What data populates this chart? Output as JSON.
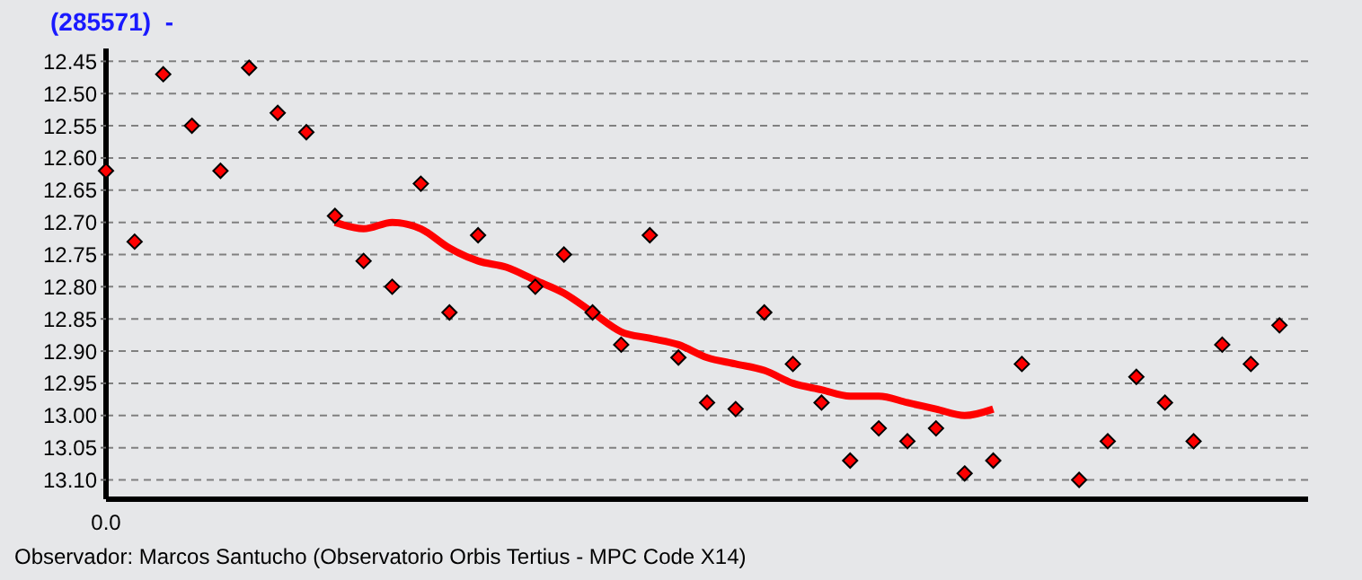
{
  "chart_data": {
    "type": "scatter",
    "title": "(285571)  -",
    "categories": [
      null,
      null,
      null,
      null,
      null,
      null,
      null,
      null,
      null,
      null,
      null,
      null,
      null,
      null,
      null,
      null,
      null,
      null,
      null,
      null,
      null,
      null,
      null,
      null,
      null,
      null,
      null,
      null,
      null,
      null,
      null,
      null,
      null,
      null,
      null,
      null,
      null,
      null,
      null,
      null,
      null,
      null,
      null
    ],
    "series": [
      {
        "color": "#ff0000",
        "marker": "diamond",
        "values": [
          12.62,
          12.73,
          12.47,
          12.55,
          12.62,
          12.46,
          12.53,
          12.56,
          12.69,
          12.76,
          12.8,
          12.64,
          12.84,
          12.72,
          null,
          12.8,
          12.75,
          12.84,
          12.89,
          12.72,
          12.91,
          12.98,
          12.99,
          12.84,
          12.92,
          12.98,
          13.07,
          13.02,
          13.04,
          13.02,
          13.09,
          13.07,
          12.92,
          null,
          13.1,
          13.04,
          12.94,
          12.98,
          13.04,
          12.89,
          12.92,
          12.86,
          null
        ]
      },
      {
        "type": "line",
        "color": "#ff0000",
        "marker": "none",
        "line_style": "solid",
        "values": [
          null,
          null,
          null,
          null,
          null,
          null,
          null,
          null,
          12.7,
          12.71,
          12.7,
          12.71,
          12.74,
          12.76,
          12.77,
          12.79,
          12.81,
          12.84,
          12.87,
          12.88,
          12.89,
          12.91,
          12.92,
          12.93,
          12.95,
          12.96,
          12.97,
          12.97,
          12.98,
          12.99,
          13.0,
          12.99,
          null,
          null,
          null,
          null,
          null,
          null,
          null,
          null,
          null,
          null,
          null
        ]
      }
    ],
    "ylim": [
      13.13,
      12.43
    ],
    "yticks": [
      {
        "value": 12.45,
        "label": "12.45"
      },
      {
        "value": 12.5,
        "label": "12.50"
      },
      {
        "value": 12.55,
        "label": "12.55"
      },
      {
        "value": 12.6,
        "label": "12.60"
      },
      {
        "value": 12.65,
        "label": "12.65"
      },
      {
        "value": 12.7,
        "label": "12.70"
      },
      {
        "value": 12.75,
        "label": "12.75"
      },
      {
        "value": 12.8,
        "label": "12.80"
      },
      {
        "value": 12.85,
        "label": "12.85"
      },
      {
        "value": 12.9,
        "label": "12.90"
      },
      {
        "value": 12.95,
        "label": "12.95"
      },
      {
        "value": 13.0,
        "label": "13.00"
      },
      {
        "value": 13.05,
        "label": "13.05"
      },
      {
        "value": 13.1,
        "label": "13.10"
      }
    ],
    "grid": "y",
    "annotations": [
      "0.0",
      "Observador: Marcos Santucho (Observatorio Orbis Tertius - MPC Code X14)"
    ]
  }
}
